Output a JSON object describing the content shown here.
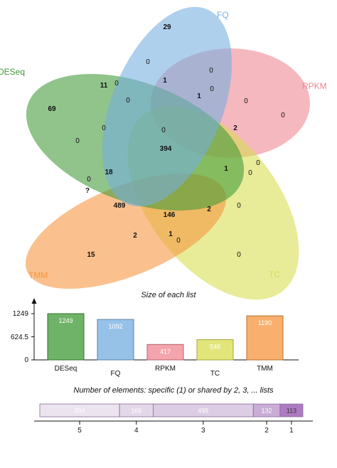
{
  "venn": {
    "sets": [
      {
        "name": "DESeq",
        "color": "#3f9a37"
      },
      {
        "name": "FQ",
        "color": "#74aee0"
      },
      {
        "name": "RPKM",
        "color": "#f08590"
      },
      {
        "name": "TC",
        "color": "#d8dd4e"
      },
      {
        "name": "TMM",
        "color": "#f7953e"
      }
    ],
    "regions": [
      {
        "id": "fq-only",
        "label": "29",
        "bold": true
      },
      {
        "id": "deseq-only",
        "label": "69",
        "bold": true
      },
      {
        "id": "rpkm-only",
        "label": "0",
        "bold": false
      },
      {
        "id": "tc-only",
        "label": "0",
        "bold": false
      },
      {
        "id": "tmm-only",
        "label": "15",
        "bold": true
      },
      {
        "id": "r-a",
        "label": "0",
        "bold": false
      },
      {
        "id": "r-b",
        "label": "0",
        "bold": false
      },
      {
        "id": "r-c",
        "label": "11",
        "bold": true
      },
      {
        "id": "r-d",
        "label": "0",
        "bold": false
      },
      {
        "id": "r-e",
        "label": "1",
        "bold": true
      },
      {
        "id": "r-f",
        "label": "0",
        "bold": false
      },
      {
        "id": "r-g",
        "label": "1",
        "bold": true
      },
      {
        "id": "r-h",
        "label": "0",
        "bold": false
      },
      {
        "id": "r-i",
        "label": "0",
        "bold": false
      },
      {
        "id": "r-j",
        "label": "0",
        "bold": false
      },
      {
        "id": "r-k",
        "label": "2",
        "bold": true
      },
      {
        "id": "r-l",
        "label": "0",
        "bold": false
      },
      {
        "id": "all-five",
        "label": "394",
        "bold": true
      },
      {
        "id": "r-m",
        "label": "18",
        "bold": true
      },
      {
        "id": "r-n",
        "label": "0",
        "bold": false
      },
      {
        "id": "r-o",
        "label": "1",
        "bold": true
      },
      {
        "id": "r-p",
        "label": "0",
        "bold": false
      },
      {
        "id": "r-q",
        "label": "0",
        "bold": false
      },
      {
        "id": "r-r",
        "label": "?",
        "bold": true
      },
      {
        "id": "r-s",
        "label": "489",
        "bold": true
      },
      {
        "id": "r-t",
        "label": "146",
        "bold": true
      },
      {
        "id": "r-u",
        "label": "2",
        "bold": true
      },
      {
        "id": "r-v",
        "label": "0",
        "bold": false
      },
      {
        "id": "r-w",
        "label": "2",
        "bold": true
      },
      {
        "id": "r-x",
        "label": "1",
        "bold": true
      },
      {
        "id": "r-y",
        "label": "0",
        "bold": false
      },
      {
        "id": "r-z",
        "label": "0",
        "bold": false
      }
    ]
  },
  "chart_data": [
    {
      "type": "bar",
      "title": "Size of each list",
      "categories": [
        "DESeq",
        "FQ",
        "RPKM",
        "TC",
        "TMM"
      ],
      "values": [
        1249,
        1092,
        417,
        546,
        1190
      ],
      "colors": [
        "#3f9a37",
        "#74aee0",
        "#f08590",
        "#d8dd4e",
        "#f7953e"
      ],
      "yticks": [
        "1249",
        "624.5",
        "0"
      ],
      "ylim": [
        0,
        1249
      ]
    },
    {
      "type": "bar",
      "title": "Number of elements: specific (1) or shared by 2, 3, ... lists",
      "orientation": "horizontal-stacked",
      "categories": [
        "5",
        "4",
        "3",
        "2",
        "1"
      ],
      "values": [
        394,
        166,
        495,
        132,
        113
      ],
      "colors": [
        "#ece4ef",
        "#e3d8e9",
        "#dccde5",
        "#c9add6",
        "#ad7bc2"
      ],
      "label_colors": [
        "#ffffff",
        "#ffffff",
        "#ffffff",
        "#ffffff",
        "#333333"
      ]
    }
  ]
}
